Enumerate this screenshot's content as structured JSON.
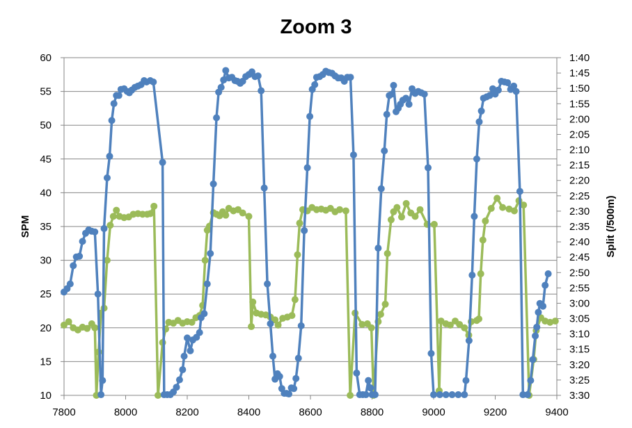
{
  "chart_data": {
    "type": "line",
    "title": "Zoom 3",
    "xlabel": "",
    "ylabel": "SPM",
    "y2label": "Split (/500m)",
    "xlim": [
      7800,
      9400
    ],
    "ylim": [
      10,
      60
    ],
    "y2lim_seconds": [
      100,
      210
    ],
    "y2_reversed": true,
    "grid": "horizontal",
    "x_ticks": [
      "7800",
      "8000",
      "8200",
      "8400",
      "8600",
      "8800",
      "9000",
      "9200",
      "9400"
    ],
    "y_ticks": [
      "10",
      "15",
      "20",
      "25",
      "30",
      "35",
      "40",
      "45",
      "50",
      "55",
      "60"
    ],
    "y2_ticks": [
      "1:40",
      "1:45",
      "1:50",
      "1:55",
      "2:00",
      "2:05",
      "2:10",
      "2:15",
      "2:20",
      "2:25",
      "2:30",
      "2:35",
      "2:40",
      "2:45",
      "2:50",
      "2:55",
      "3:00",
      "3:05",
      "3:10",
      "3:15",
      "3:20",
      "3:25",
      "3:30"
    ],
    "colors": {
      "spm": "#4F81BD",
      "split": "#9BBB59"
    },
    "series": [
      {
        "name": "SPM",
        "axis": "left",
        "points": [
          [
            7800,
            25.3
          ],
          [
            7810,
            25.8
          ],
          [
            7820,
            26.5
          ],
          [
            7830,
            29.2
          ],
          [
            7840,
            30.5
          ],
          [
            7850,
            30.6
          ],
          [
            7860,
            32.8
          ],
          [
            7870,
            34
          ],
          [
            7880,
            34.5
          ],
          [
            7890,
            34.3
          ],
          [
            7900,
            34.2
          ],
          [
            7910,
            25
          ],
          [
            7920,
            10.1
          ],
          [
            7925,
            12.2
          ],
          [
            7930,
            34.7
          ],
          [
            7940,
            42.2
          ],
          [
            7948,
            45.4
          ],
          [
            7955,
            50.7
          ],
          [
            7962,
            53.2
          ],
          [
            7970,
            54.4
          ],
          [
            7978,
            54.4
          ],
          [
            7985,
            55.3
          ],
          [
            7995,
            55.4
          ],
          [
            8005,
            55
          ],
          [
            8012,
            54.8
          ],
          [
            8020,
            55.2
          ],
          [
            8030,
            55.6
          ],
          [
            8040,
            55.8
          ],
          [
            8050,
            56
          ],
          [
            8060,
            56.6
          ],
          [
            8068,
            56.4
          ],
          [
            8080,
            56.6
          ],
          [
            8090,
            56.4
          ],
          [
            8120,
            44.5
          ],
          [
            8125,
            10.1
          ],
          [
            8135,
            10.1
          ],
          [
            8145,
            10.1
          ],
          [
            8155,
            10.5
          ],
          [
            8165,
            11.2
          ],
          [
            8175,
            12.3
          ],
          [
            8185,
            13.8
          ],
          [
            8190,
            15.8
          ],
          [
            8200,
            18.5
          ],
          [
            8210,
            16.6
          ],
          [
            8218,
            18.2
          ],
          [
            8230,
            18.6
          ],
          [
            8240,
            19.3
          ],
          [
            8245,
            21.5
          ],
          [
            8255,
            22.1
          ],
          [
            8265,
            26.5
          ],
          [
            8275,
            31
          ],
          [
            8285,
            41.3
          ],
          [
            8295,
            51.1
          ],
          [
            8302,
            54.9
          ],
          [
            8310,
            55.6
          ],
          [
            8318,
            56.7
          ],
          [
            8325,
            58.1
          ],
          [
            8335,
            57
          ],
          [
            8345,
            57.1
          ],
          [
            8355,
            56.6
          ],
          [
            8363,
            56.5
          ],
          [
            8372,
            56.2
          ],
          [
            8380,
            56.5
          ],
          [
            8390,
            57.2
          ],
          [
            8400,
            57.5
          ],
          [
            8410,
            57.9
          ],
          [
            8420,
            57.2
          ],
          [
            8430,
            57.3
          ],
          [
            8440,
            55.1
          ],
          [
            8450,
            40.7
          ],
          [
            8460,
            26.5
          ],
          [
            8470,
            20.6
          ],
          [
            8478,
            15.8
          ],
          [
            8485,
            12.4
          ],
          [
            8493,
            13.2
          ],
          [
            8500,
            12.8
          ],
          [
            8507,
            11
          ],
          [
            8515,
            10.3
          ],
          [
            8522,
            10.3
          ],
          [
            8530,
            10.2
          ],
          [
            8538,
            11.1
          ],
          [
            8546,
            11
          ],
          [
            8553,
            12.5
          ],
          [
            8561,
            15.5
          ],
          [
            8570,
            20.3
          ],
          [
            8580,
            34.4
          ],
          [
            8590,
            43.7
          ],
          [
            8598,
            51.3
          ],
          [
            8606,
            55.3
          ],
          [
            8614,
            56
          ],
          [
            8620,
            57.1
          ],
          [
            8630,
            57.2
          ],
          [
            8640,
            57.5
          ],
          [
            8650,
            58
          ],
          [
            8660,
            57.8
          ],
          [
            8670,
            57.7
          ],
          [
            8680,
            57.3
          ],
          [
            8690,
            57
          ],
          [
            8700,
            57
          ],
          [
            8710,
            56.5
          ],
          [
            8720,
            57.1
          ],
          [
            8730,
            57.1
          ],
          [
            8740,
            45.6
          ],
          [
            8750,
            13.3
          ],
          [
            8760,
            10.1
          ],
          [
            8770,
            10.1
          ],
          [
            8780,
            10.1
          ],
          [
            8788,
            12.2
          ],
          [
            8795,
            11.1
          ],
          [
            8800,
            10.1
          ],
          [
            8810,
            10.1
          ],
          [
            8820,
            31.8
          ],
          [
            8830,
            40.6
          ],
          [
            8840,
            46.2
          ],
          [
            8848,
            51.6
          ],
          [
            8856,
            54.4
          ],
          [
            8864,
            54.6
          ],
          [
            8870,
            55.9
          ],
          [
            8878,
            52
          ],
          [
            8885,
            52.5
          ],
          [
            8892,
            53.1
          ],
          [
            8900,
            53.7
          ],
          [
            8910,
            54
          ],
          [
            8920,
            53.1
          ],
          [
            8930,
            55.4
          ],
          [
            8940,
            54.7
          ],
          [
            8950,
            55
          ],
          [
            8960,
            54.8
          ],
          [
            8970,
            54.6
          ],
          [
            8982,
            43.7
          ],
          [
            8992,
            16.2
          ],
          [
            9000,
            10.1
          ],
          [
            9020,
            10.1
          ],
          [
            9040,
            10.1
          ],
          [
            9060,
            10.1
          ],
          [
            9080,
            10.1
          ],
          [
            9100,
            10.1
          ],
          [
            9105,
            12.2
          ],
          [
            9115,
            18.1
          ],
          [
            9125,
            27.8
          ],
          [
            9132,
            36.5
          ],
          [
            9140,
            45
          ],
          [
            9148,
            50.5
          ],
          [
            9155,
            52.1
          ],
          [
            9162,
            54
          ],
          [
            9172,
            54.2
          ],
          [
            9182,
            54.4
          ],
          [
            9192,
            55.4
          ],
          [
            9200,
            54.6
          ],
          [
            9210,
            55.2
          ],
          [
            9220,
            56.5
          ],
          [
            9230,
            56.4
          ],
          [
            9240,
            56.3
          ],
          [
            9250,
            55.3
          ],
          [
            9260,
            55.8
          ],
          [
            9268,
            55
          ],
          [
            9280,
            40.2
          ],
          [
            9290,
            10.1
          ],
          [
            9305,
            10.1
          ],
          [
            9315,
            12.2
          ],
          [
            9322,
            15.3
          ],
          [
            9330,
            18.8
          ],
          [
            9335,
            20.1
          ],
          [
            9340,
            22.3
          ],
          [
            9345,
            23.6
          ],
          [
            9355,
            23.2
          ],
          [
            9362,
            26.3
          ],
          [
            9372,
            28
          ]
        ]
      },
      {
        "name": "Split (seconds /500m)",
        "axis": "right",
        "points": [
          [
            7800,
            187.1
          ],
          [
            7815,
            186.0
          ],
          [
            7830,
            188.0
          ],
          [
            7845,
            188.7
          ],
          [
            7860,
            187.8
          ],
          [
            7875,
            188.2
          ],
          [
            7890,
            186.7
          ],
          [
            7900,
            188.0
          ],
          [
            7905,
            210
          ],
          [
            7912,
            195.9
          ],
          [
            7920,
            183.2
          ],
          [
            7930,
            181.6
          ],
          [
            7940,
            166
          ],
          [
            7950,
            154.6
          ],
          [
            7960,
            151.7
          ],
          [
            7970,
            149.7
          ],
          [
            7980,
            151.7
          ],
          [
            7995,
            152.1
          ],
          [
            8010,
            151.9
          ],
          [
            8025,
            151.0
          ],
          [
            8040,
            150.8
          ],
          [
            8055,
            151.0
          ],
          [
            8070,
            151.0
          ],
          [
            8080,
            150.8
          ],
          [
            8092,
            148.4
          ],
          [
            8105,
            210
          ],
          [
            8120,
            192.8
          ],
          [
            8130,
            188.4
          ],
          [
            8140,
            186.2
          ],
          [
            8155,
            186.5
          ],
          [
            8170,
            185.6
          ],
          [
            8185,
            186.5
          ],
          [
            8200,
            186.0
          ],
          [
            8215,
            186.2
          ],
          [
            8228,
            184.7
          ],
          [
            8240,
            184.0
          ],
          [
            8250,
            180.7
          ],
          [
            8258,
            166
          ],
          [
            8265,
            156.2
          ],
          [
            8272,
            154.9
          ],
          [
            8285,
            150.5
          ],
          [
            8295,
            151.0
          ],
          [
            8305,
            151.5
          ],
          [
            8315,
            150.2
          ],
          [
            8325,
            151.3
          ],
          [
            8335,
            149.1
          ],
          [
            8350,
            149.9
          ],
          [
            8365,
            149.5
          ],
          [
            8380,
            150.6
          ],
          [
            8400,
            151.7
          ],
          [
            8408,
            187.6
          ],
          [
            8413,
            179.6
          ],
          [
            8425,
            183.2
          ],
          [
            8440,
            183.6
          ],
          [
            8455,
            183.8
          ],
          [
            8470,
            184.5
          ],
          [
            8485,
            185.4
          ],
          [
            8495,
            187.1
          ],
          [
            8510,
            184.9
          ],
          [
            8525,
            184.5
          ],
          [
            8540,
            184.0
          ],
          [
            8550,
            178.8
          ],
          [
            8558,
            164.2
          ],
          [
            8565,
            153.9
          ],
          [
            8575,
            149.5
          ],
          [
            8590,
            149.9
          ],
          [
            8605,
            148.8
          ],
          [
            8620,
            149.5
          ],
          [
            8635,
            149.3
          ],
          [
            8650,
            149.7
          ],
          [
            8665,
            149.1
          ],
          [
            8680,
            150.2
          ],
          [
            8695,
            149.5
          ],
          [
            8715,
            149.9
          ],
          [
            8729,
            210
          ],
          [
            8745,
            183.2
          ],
          [
            8768,
            186.9
          ],
          [
            8785,
            186.7
          ],
          [
            8798,
            188.0
          ],
          [
            8805,
            210
          ],
          [
            8820,
            186.0
          ],
          [
            8828,
            183.6
          ],
          [
            8843,
            180.3
          ],
          [
            8850,
            163.8
          ],
          [
            8862,
            152.8
          ],
          [
            8870,
            150.2
          ],
          [
            8881,
            148.8
          ],
          [
            8896,
            151.9
          ],
          [
            8911,
            147.5
          ],
          [
            8926,
            150.6
          ],
          [
            8940,
            151.7
          ],
          [
            8956,
            149.5
          ],
          [
            8979,
            154.3
          ],
          [
            9002,
            154.3
          ],
          [
            9018,
            208.5
          ],
          [
            9024,
            185.8
          ],
          [
            9040,
            186.7
          ],
          [
            9054,
            187.1
          ],
          [
            9070,
            185.8
          ],
          [
            9084,
            186.9
          ],
          [
            9100,
            188.0
          ],
          [
            9114,
            190.4
          ],
          [
            9122,
            186.0
          ],
          [
            9140,
            185.6
          ],
          [
            9147,
            185.1
          ],
          [
            9153,
            170.4
          ],
          [
            9160,
            159.4
          ],
          [
            9168,
            153.2
          ],
          [
            9187,
            149.1
          ],
          [
            9206,
            145.8
          ],
          [
            9224,
            148.8
          ],
          [
            9245,
            149.3
          ],
          [
            9262,
            149.9
          ],
          [
            9277,
            146.6
          ],
          [
            9292,
            148.0
          ],
          [
            9310,
            210
          ],
          [
            9325,
            198.3
          ],
          [
            9333,
            188.9
          ],
          [
            9348,
            184.7
          ],
          [
            9362,
            185.8
          ],
          [
            9378,
            186.2
          ],
          [
            9395,
            185.8
          ]
        ]
      }
    ]
  }
}
